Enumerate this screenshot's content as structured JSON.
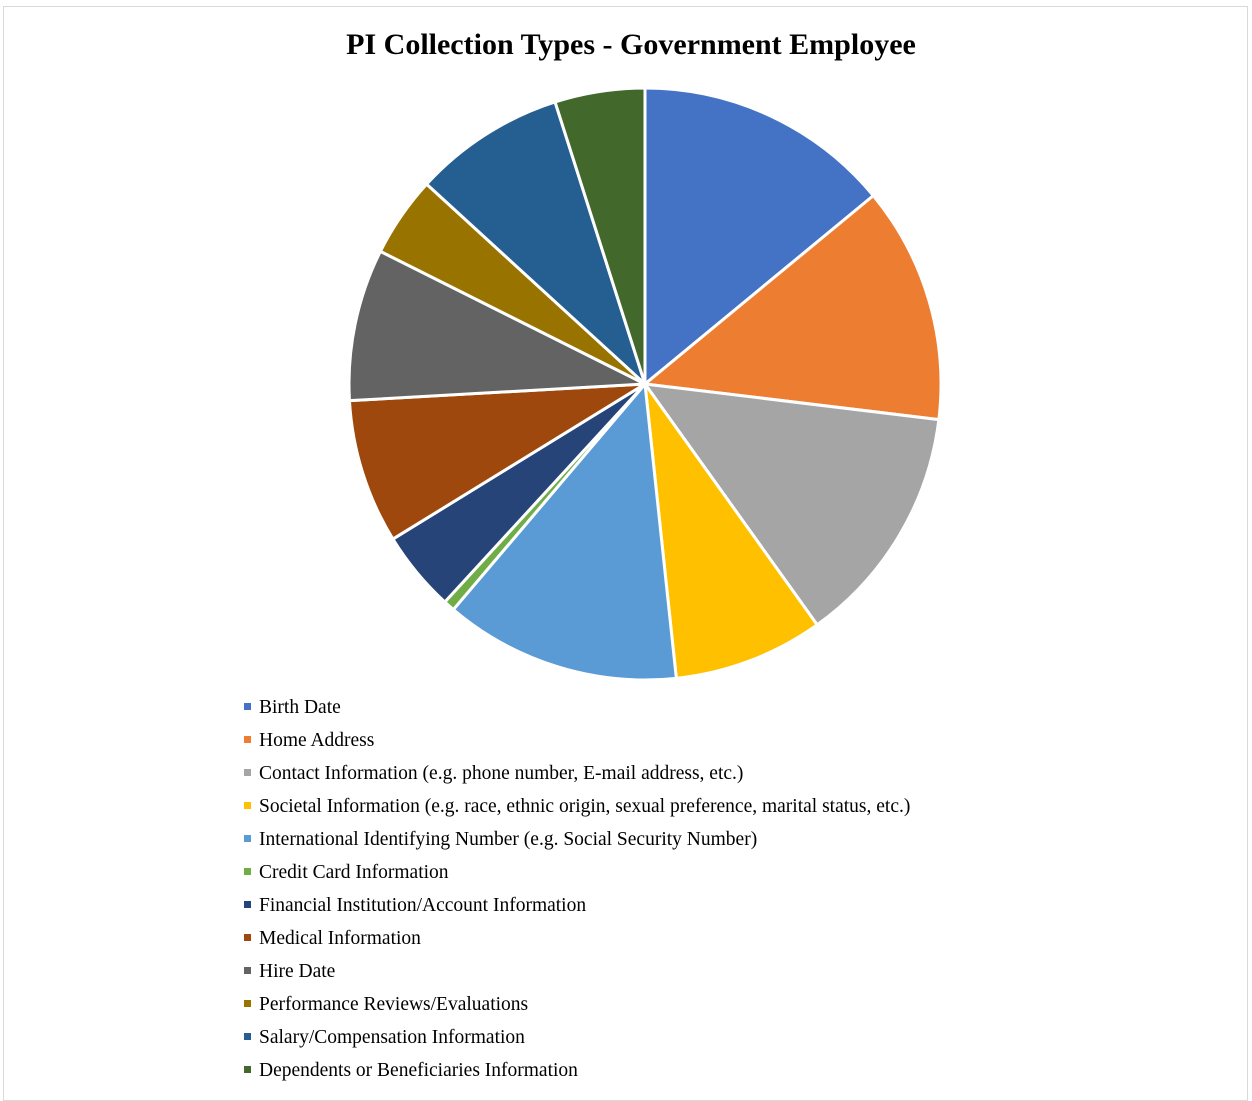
{
  "chart_data": {
    "type": "pie",
    "title": "PI Collection Types - Government Employee",
    "legend_position": "bottom",
    "categories": [
      "Birth Date",
      "Home Address",
      "Contact Information (e.g. phone number, E-mail address, etc.)",
      "Societal Information (e.g. race, ethnic origin, sexual preference, marital status, etc.)",
      "International Identifying Number (e.g. Social Security Number)",
      "Credit Card Information",
      "Financial Institution/Account Information",
      "Medical Information",
      "Hire Date",
      "Performance Reviews/Evaluations",
      "Salary/Compensation Information",
      "Dependents or Beneficiaries Information"
    ],
    "values": [
      13.7,
      12.6,
      12.9,
      8.0,
      12.6,
      0.6,
      4.3,
      7.7,
      8.1,
      4.3,
      8.1,
      4.8
    ],
    "colors": [
      "#4472C4",
      "#ED7D31",
      "#A5A5A5",
      "#FFC000",
      "#5B9BD5",
      "#70AD47",
      "#264478",
      "#9E480E",
      "#636363",
      "#997300",
      "#255E91",
      "#43682B"
    ]
  }
}
